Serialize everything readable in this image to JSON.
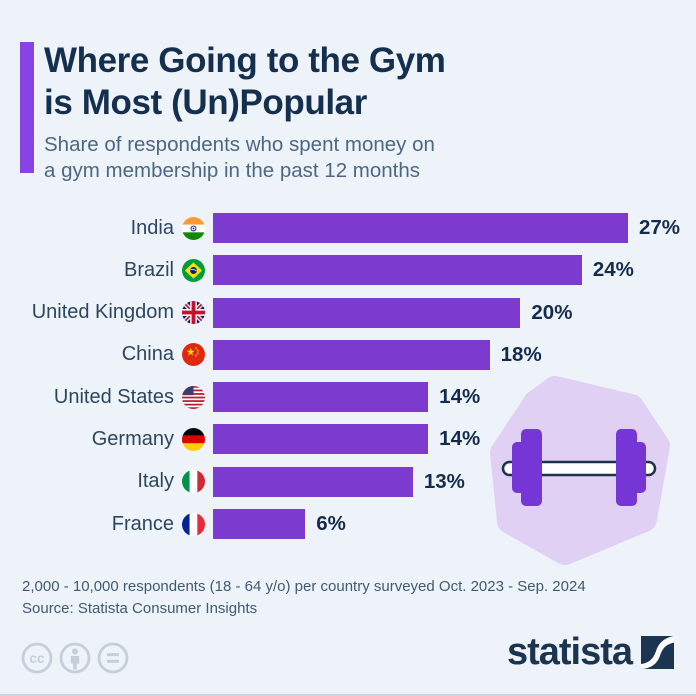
{
  "header": {
    "title_line1": "Where Going to the Gym",
    "title_line2": "is Most (Un)Popular",
    "subtitle_line1": "Share of respondents who spent money on",
    "subtitle_line2": "a gym membership in the past 12 months"
  },
  "chart_data": {
    "type": "bar",
    "orientation": "horizontal",
    "title": "Where Going to the Gym is Most (Un)Popular",
    "subtitle": "Share of respondents who spent money on a gym membership in the past 12 months",
    "unit": "%",
    "categories": [
      "India",
      "Brazil",
      "United Kingdom",
      "China",
      "United States",
      "Germany",
      "Italy",
      "France"
    ],
    "values": [
      27,
      24,
      20,
      18,
      14,
      14,
      13,
      6
    ],
    "value_labels": [
      "27%",
      "24%",
      "20%",
      "18%",
      "14%",
      "14%",
      "13%",
      "6%"
    ],
    "flag_icons": [
      "india-flag-icon",
      "brazil-flag-icon",
      "united-kingdom-flag-icon",
      "china-flag-icon",
      "united-states-flag-icon",
      "germany-flag-icon",
      "italy-flag-icon",
      "france-flag-icon"
    ],
    "xlim": [
      0,
      27
    ],
    "grid": false,
    "legend": false,
    "bar_color": "#7C3BCE",
    "accent_color": "#8743E3"
  },
  "illustration": {
    "name": "dumbbell-icon",
    "blob_color": "#DFD0F4",
    "plate_color": "#7636D6"
  },
  "footer": {
    "note": "2,000 - 10,000 respondents (18 - 64 y/o) per country surveyed Oct. 2023 - Sep. 2024",
    "source": "Source: Statista Consumer Insights"
  },
  "branding": {
    "logo_text": "statista",
    "logo_color": "#1B3551",
    "license_icons": [
      "cc-icon",
      "attribution-icon",
      "equal-icon"
    ]
  }
}
